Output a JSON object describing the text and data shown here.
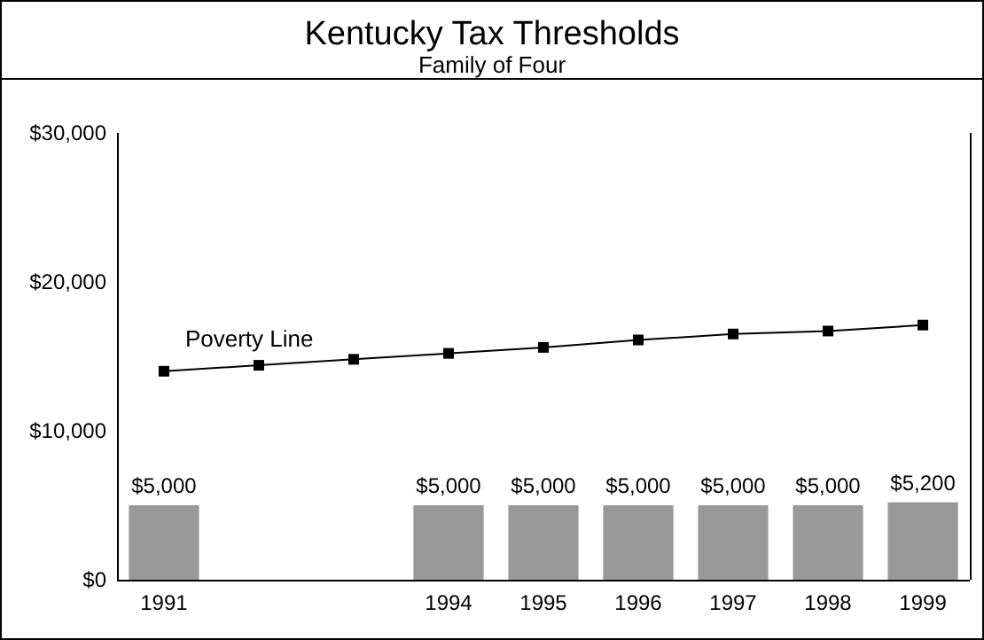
{
  "chart_data": {
    "type": "bar",
    "title": "Kentucky Tax Thresholds",
    "subtitle": "Family of Four",
    "categories": [
      "1991",
      null,
      null,
      "1994",
      "1995",
      "1996",
      "1997",
      "1998",
      "1999"
    ],
    "series": [
      {
        "color": "#999999",
        "values": [
          5000,
          null,
          null,
          5000,
          5000,
          5000,
          5000,
          5000,
          5200
        ],
        "value_labels": [
          "$5,000",
          null,
          null,
          "$5,000",
          "$5,000",
          "$5,000",
          "$5,000",
          "$5,000",
          "$5,200"
        ]
      },
      {
        "type": "line",
        "name": "Poverty Line",
        "color": "#000000",
        "marker": "square",
        "values": [
          14000,
          14400,
          14800,
          15200,
          15600,
          16100,
          16500,
          16700,
          17100
        ]
      }
    ],
    "ylim": [
      0,
      30000
    ],
    "yticks": [
      {
        "value": 0,
        "label": "$0"
      },
      {
        "value": 10000,
        "label": "$10,000"
      },
      {
        "value": 20000,
        "label": "$20,000"
      },
      {
        "value": 30000,
        "label": "$30,000"
      }
    ],
    "grid": false
  }
}
